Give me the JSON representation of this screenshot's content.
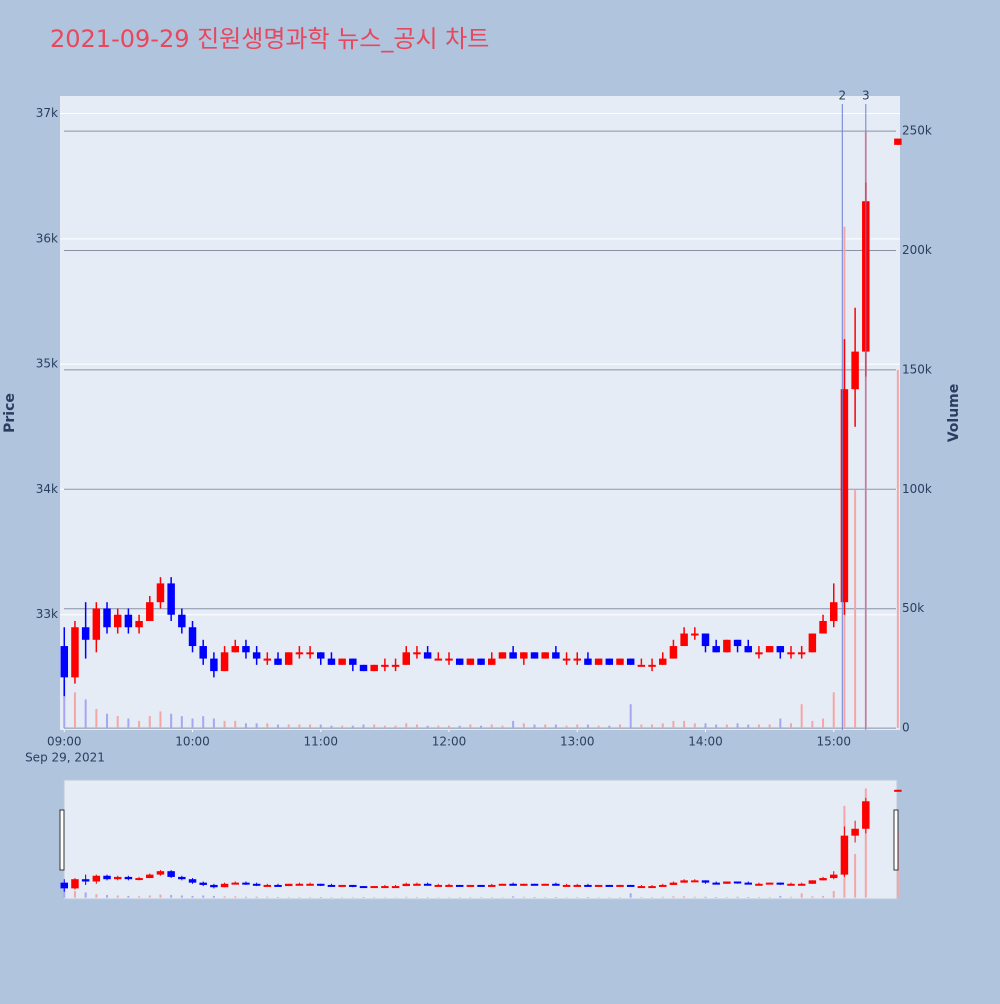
{
  "chart_data": {
    "type": "candlestick",
    "title": "2021-09-29 진원생명과학 뉴스_공시 차트",
    "y_title": "Price",
    "y2_title": "Volume",
    "x": [
      "2021-09-29 09:00",
      "2021-09-29 09:05",
      "2021-09-29 09:10",
      "2021-09-29 09:15",
      "2021-09-29 09:20",
      "2021-09-29 09:25",
      "2021-09-29 09:30",
      "2021-09-29 09:35",
      "2021-09-29 09:40",
      "2021-09-29 09:45",
      "2021-09-29 09:50",
      "2021-09-29 09:55",
      "2021-09-29 10:00",
      "2021-09-29 10:05",
      "2021-09-29 10:10",
      "2021-09-29 10:15",
      "2021-09-29 10:20",
      "2021-09-29 10:25",
      "2021-09-29 10:30",
      "2021-09-29 10:35",
      "2021-09-29 10:40",
      "2021-09-29 10:45",
      "2021-09-29 10:50",
      "2021-09-29 10:55",
      "2021-09-29 11:00",
      "2021-09-29 11:05",
      "2021-09-29 11:10",
      "2021-09-29 11:15",
      "2021-09-29 11:20",
      "2021-09-29 11:25",
      "2021-09-29 11:30",
      "2021-09-29 11:35",
      "2021-09-29 11:40",
      "2021-09-29 11:45",
      "2021-09-29 11:50",
      "2021-09-29 11:55",
      "2021-09-29 12:00",
      "2021-09-29 12:05",
      "2021-09-29 12:10",
      "2021-09-29 12:15",
      "2021-09-29 12:20",
      "2021-09-29 12:25",
      "2021-09-29 12:30",
      "2021-09-29 12:35",
      "2021-09-29 12:40",
      "2021-09-29 12:45",
      "2021-09-29 12:50",
      "2021-09-29 12:55",
      "2021-09-29 13:00",
      "2021-09-29 13:05",
      "2021-09-29 13:10",
      "2021-09-29 13:15",
      "2021-09-29 13:20",
      "2021-09-29 13:25",
      "2021-09-29 13:30",
      "2021-09-29 13:35",
      "2021-09-29 13:40",
      "2021-09-29 13:45",
      "2021-09-29 13:50",
      "2021-09-29 13:55",
      "2021-09-29 14:00",
      "2021-09-29 14:05",
      "2021-09-29 14:10",
      "2021-09-29 14:15",
      "2021-09-29 14:20",
      "2021-09-29 14:25",
      "2021-09-29 14:30",
      "2021-09-29 14:35",
      "2021-09-29 14:40",
      "2021-09-29 14:45",
      "2021-09-29 14:50",
      "2021-09-29 14:55",
      "2021-09-29 15:00",
      "2021-09-29 15:05",
      "2021-09-29 15:10",
      "2021-09-29 15:15",
      "2021-09-29 15:30"
    ],
    "open": [
      32750,
      32500,
      32900,
      32800,
      33050,
      32900,
      33000,
      32900,
      32950,
      33100,
      33250,
      33000,
      32900,
      32750,
      32650,
      32550,
      32700,
      32750,
      32700,
      32650,
      32650,
      32600,
      32700,
      32700,
      32700,
      32650,
      32600,
      32650,
      32600,
      32550,
      32600,
      32600,
      32600,
      32700,
      32700,
      32650,
      32650,
      32650,
      32600,
      32650,
      32600,
      32650,
      32700,
      32650,
      32700,
      32650,
      32700,
      32650,
      32650,
      32650,
      32600,
      32650,
      32600,
      32650,
      32600,
      32600,
      32600,
      32650,
      32750,
      32850,
      32850,
      32750,
      32700,
      32800,
      32750,
      32700,
      32700,
      32750,
      32700,
      32700,
      32700,
      32850,
      32950,
      33100,
      34800,
      35100,
      36750
    ],
    "high": [
      32900,
      32950,
      33100,
      33100,
      33100,
      33050,
      33050,
      33000,
      33150,
      33300,
      33300,
      33050,
      32950,
      32800,
      32700,
      32750,
      32800,
      32800,
      32750,
      32700,
      32700,
      32700,
      32750,
      32750,
      32700,
      32700,
      32650,
      32650,
      32600,
      32600,
      32650,
      32650,
      32750,
      32750,
      32750,
      32700,
      32700,
      32650,
      32650,
      32650,
      32700,
      32700,
      32750,
      32700,
      32700,
      32700,
      32750,
      32700,
      32700,
      32700,
      32650,
      32650,
      32650,
      32650,
      32650,
      32650,
      32700,
      32800,
      32900,
      32900,
      32850,
      32800,
      32800,
      32800,
      32800,
      32750,
      32750,
      32750,
      32750,
      32750,
      32850,
      33000,
      33250,
      35200,
      35450,
      36450,
      36800
    ],
    "low": [
      32350,
      32450,
      32650,
      32700,
      32850,
      32850,
      32850,
      32850,
      32950,
      33050,
      32950,
      32850,
      32700,
      32600,
      32500,
      32550,
      32700,
      32650,
      32600,
      32600,
      32600,
      32600,
      32650,
      32650,
      32600,
      32600,
      32600,
      32550,
      32550,
      32550,
      32550,
      32550,
      32600,
      32650,
      32650,
      32650,
      32600,
      32600,
      32600,
      32600,
      32600,
      32650,
      32650,
      32600,
      32650,
      32650,
      32650,
      32600,
      32600,
      32600,
      32600,
      32600,
      32600,
      32600,
      32600,
      32550,
      32600,
      32650,
      32750,
      32800,
      32700,
      32700,
      32700,
      32700,
      32700,
      32650,
      32700,
      32650,
      32650,
      32650,
      32700,
      32850,
      32900,
      33000,
      34500,
      34900,
      36750
    ],
    "close": [
      32500,
      32900,
      32800,
      33050,
      32900,
      33000,
      32900,
      32950,
      33100,
      33250,
      33000,
      32900,
      32750,
      32650,
      32550,
      32700,
      32750,
      32700,
      32650,
      32650,
      32600,
      32700,
      32700,
      32700,
      32650,
      32600,
      32650,
      32600,
      32550,
      32600,
      32600,
      32600,
      32700,
      32700,
      32650,
      32650,
      32650,
      32600,
      32650,
      32600,
      32650,
      32700,
      32650,
      32700,
      32650,
      32700,
      32650,
      32650,
      32650,
      32600,
      32650,
      32600,
      32650,
      32600,
      32600,
      32600,
      32650,
      32750,
      32850,
      32850,
      32750,
      32700,
      32800,
      32750,
      32700,
      32700,
      32750,
      32700,
      32700,
      32700,
      32850,
      32950,
      33100,
      34800,
      35100,
      36300,
      36800
    ],
    "volume": [
      20000,
      15000,
      12000,
      8000,
      6000,
      5000,
      4000,
      3000,
      5000,
      7000,
      6000,
      5000,
      4000,
      5000,
      4000,
      3000,
      3000,
      2000,
      2000,
      2000,
      1500,
      1500,
      1500,
      1500,
      1500,
      1000,
      1000,
      1000,
      1500,
      1500,
      1000,
      1000,
      2000,
      1500,
      1000,
      1000,
      1000,
      1000,
      1500,
      1000,
      1500,
      1000,
      3000,
      2000,
      1500,
      1500,
      1500,
      1000,
      1500,
      1500,
      1000,
      1000,
      1500,
      10000,
      1500,
      1500,
      2000,
      3000,
      3000,
      2000,
      2000,
      1500,
      1500,
      2000,
      1500,
      1500,
      1500,
      4000,
      2000,
      10000,
      3000,
      4000,
      15000,
      210000,
      100000,
      250000,
      150000
    ],
    "increasing_color": "#ff0000",
    "decreasing_color": "#0000ff",
    "xlim": [
      "2021-09-29 08:58",
      "2021-09-29 15:31"
    ],
    "xticks": [
      {
        "value": "2021-09-29 09:00",
        "label": "09:00"
      },
      {
        "value": "2021-09-29 10:00",
        "label": "10:00"
      },
      {
        "value": "2021-09-29 11:00",
        "label": "11:00"
      },
      {
        "value": "2021-09-29 12:00",
        "label": "12:00"
      },
      {
        "value": "2021-09-29 13:00",
        "label": "13:00"
      },
      {
        "value": "2021-09-29 14:00",
        "label": "14:00"
      },
      {
        "value": "2021-09-29 15:00",
        "label": "15:00"
      }
    ],
    "x_date_label": "Sep 29, 2021",
    "ylim": [
      32080,
      37140
    ],
    "yticks": [
      {
        "value": 33000,
        "label": "33k"
      },
      {
        "value": 34000,
        "label": "34k"
      },
      {
        "value": 35000,
        "label": "35k"
      },
      {
        "value": 36000,
        "label": "36k"
      },
      {
        "value": 37000,
        "label": "37k"
      }
    ],
    "y2lim": [
      -800,
      264700
    ],
    "y2ticks": [
      0,
      {
        "value": 50000,
        "label": "50k"
      },
      {
        "value": 100000,
        "label": "100k"
      },
      {
        "value": 150000,
        "label": "150k"
      },
      {
        "value": 200000,
        "label": "200k"
      },
      {
        "value": 250000,
        "label": "250k"
      }
    ],
    "markers": [
      {
        "x": "2021-09-29 15:04",
        "label": "2"
      },
      {
        "x": "2021-09-29 15:15",
        "label": "3"
      }
    ],
    "range_slider": true
  }
}
